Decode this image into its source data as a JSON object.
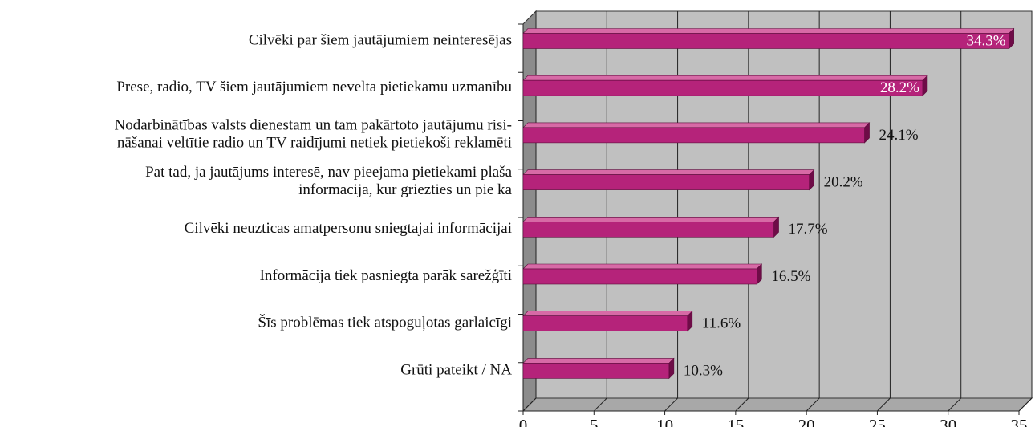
{
  "chart_data": {
    "type": "bar3d_horizontal",
    "categories": [
      "Cilvēki par šiem jautājumiem neinteresējas",
      "Prese, radio, TV šiem jautājumiem nevelta pietiekamu uzmanību",
      "Nodarbinātības valsts dienestam un tam pakārtoto jautājumu risi-\nnāšanai veltītie radio un TV raidījumi netiek pietiekoši reklamēti",
      "Pat tad, ja jautājums interesē, nav pieejama pietiekami plaša\ninformācija, kur griezties un pie kā",
      "Cilvēki neuzticas amatpersonu sniegtajai informācijai",
      "Informācija tiek pasniegta parāk sarežģīti",
      "Šīs problēmas tiek atspoguļotas garlaicīgi",
      "Grūti pateikt / NA"
    ],
    "values": [
      34.3,
      28.2,
      24.1,
      20.2,
      17.7,
      16.5,
      11.6,
      10.3
    ],
    "value_labels": [
      "34.3%",
      "28.2%",
      "24.1%",
      "20.2%",
      "17.7%",
      "16.5%",
      "11.6%",
      "10.3%"
    ],
    "color": "#b5237a",
    "xlim": [
      0,
      35
    ],
    "xticks": [
      0,
      5,
      10,
      15,
      20,
      25,
      30,
      35
    ],
    "grid": true
  }
}
